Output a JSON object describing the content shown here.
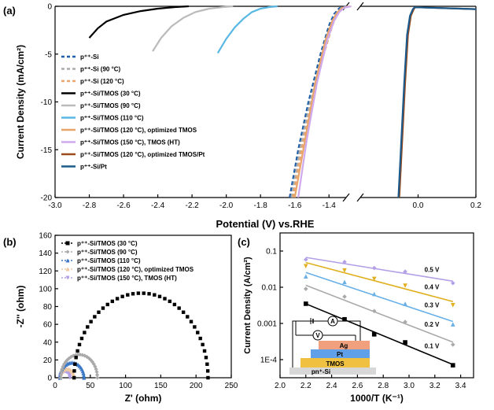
{
  "panels": {
    "a": "(a)",
    "b": "(b)",
    "c": "(c)"
  },
  "chart_data": [
    {
      "type": "line",
      "panel": "(a)",
      "xlabel": "Potential (V) vs.RHE",
      "ylabel": "Current Density (mA/cm²)",
      "ylim": [
        -20,
        0
      ],
      "x_ticks_left": [
        "-3.0",
        "-2.8",
        "-2.6",
        "-2.4",
        "-2.2",
        "-2.0",
        "-1.8",
        "-1.6",
        "-1.4"
      ],
      "x_ticks_right": [
        "0.0",
        "0.2"
      ],
      "y_ticks": [
        "0",
        "-5",
        "-10",
        "-15",
        "-20"
      ],
      "axis_break": true,
      "series": [
        {
          "name": "p⁺⁺-Si",
          "color": "#1f5fa8",
          "dash": "dashed",
          "x": [
            -1.63,
            -1.58,
            -1.52,
            -1.45,
            -1.4,
            -1.37,
            -1.34,
            -1.3
          ],
          "y": [
            -20,
            -15,
            -10,
            -5,
            -2,
            -0.8,
            -0.2,
            0
          ]
        },
        {
          "name": "p⁺⁺-Si (90 °C)",
          "color": "#aaaaaa",
          "dash": "dashed",
          "x": [
            -1.62,
            -1.57,
            -1.51,
            -1.44,
            -1.39,
            -1.36,
            -1.33,
            -1.29
          ],
          "y": [
            -20,
            -15,
            -10,
            -5,
            -2,
            -0.8,
            -0.2,
            0
          ]
        },
        {
          "name": "p⁺⁺-Si (120 °C)",
          "color": "#e9a56b",
          "dash": "dashed",
          "x": [
            -1.61,
            -1.56,
            -1.5,
            -1.43,
            -1.38,
            -1.35,
            -1.32,
            -1.28
          ],
          "y": [
            -20,
            -15,
            -10,
            -5,
            -2,
            -0.8,
            -0.2,
            0
          ]
        },
        {
          "name": "p⁺⁺-Si/TMOS (30 °C)",
          "color": "#000000",
          "dash": "solid",
          "x": [
            -2.8,
            -2.75,
            -2.7,
            -2.6,
            -2.5,
            -2.4,
            -2.3,
            -2.22
          ],
          "y": [
            -3.3,
            -2.3,
            -1.6,
            -0.9,
            -0.5,
            -0.25,
            -0.08,
            0
          ]
        },
        {
          "name": "p⁺⁺-Si/TMOS (90 °C)",
          "color": "#bbbbbb",
          "dash": "solid",
          "x": [
            -2.43,
            -2.38,
            -2.32,
            -2.25,
            -2.18,
            -2.1,
            -2.02,
            -1.96
          ],
          "y": [
            -4.7,
            -3.3,
            -2.1,
            -1.2,
            -0.6,
            -0.25,
            -0.08,
            0
          ]
        },
        {
          "name": "p⁺⁺-Si/TMOS (110 °C)",
          "color": "#58b7e3",
          "dash": "solid",
          "x": [
            -2.05,
            -2.0,
            -1.95,
            -1.9,
            -1.85,
            -1.8,
            -1.75,
            -1.7
          ],
          "y": [
            -4.9,
            -3.4,
            -2.2,
            -1.3,
            -0.6,
            -0.25,
            -0.08,
            0
          ]
        },
        {
          "name": "p⁺⁺-Si/TMOS (120 °C), optimized TMOS",
          "color": "#e8a46a",
          "dash": "solid",
          "x": [
            -1.6,
            -1.54,
            -1.48,
            -1.42,
            -1.38,
            -1.35,
            -1.32,
            -1.28
          ],
          "y": [
            -20,
            -14,
            -8,
            -3.5,
            -1.5,
            -0.6,
            -0.15,
            0
          ]
        },
        {
          "name": "p⁺⁺-Si/TMOS (150 °C), TMOS (HT)",
          "color": "#cfa9ee",
          "dash": "solid",
          "x": [
            -1.58,
            -1.53,
            -1.47,
            -1.41,
            -1.37,
            -1.34,
            -1.31,
            -1.27
          ],
          "y": [
            -20,
            -14,
            -8,
            -3.5,
            -1.5,
            -0.6,
            -0.15,
            0
          ]
        },
        {
          "name": "p⁺⁺-Si/TMOS (120 °C), optimized TMOS/Pt",
          "color": "#9a4a1b",
          "dash": "solid",
          "x": [
            -0.065,
            -0.055,
            -0.045,
            -0.035,
            -0.025,
            -0.015,
            -0.01,
            0.2
          ],
          "y": [
            -20,
            -14,
            -8,
            -3,
            -1,
            -0.3,
            -0.1,
            -0.3
          ]
        },
        {
          "name": "p⁺⁺-Si/Pt",
          "color": "#1c5a8c",
          "dash": "solid",
          "x": [
            -0.068,
            -0.058,
            -0.048,
            -0.038,
            -0.028,
            -0.018,
            -0.012,
            0.2
          ],
          "y": [
            -20,
            -14,
            -8,
            -3,
            -1,
            -0.3,
            -0.1,
            -0.3
          ]
        }
      ]
    },
    {
      "type": "scatter",
      "panel": "(b)",
      "xlabel": "Z' (ohm)",
      "ylabel": "-Z'' (ohm)",
      "xlim": [
        0,
        250
      ],
      "ylim": [
        0,
        160
      ],
      "x_ticks": [
        "0",
        "50",
        "100",
        "150",
        "200",
        "250"
      ],
      "y_ticks": [
        "0",
        "20",
        "40",
        "60",
        "80",
        "100",
        "120",
        "140",
        "160"
      ],
      "series": [
        {
          "name": "p⁺⁺-Si/TMOS (30 °C)",
          "color": "#000000",
          "marker": "square",
          "center": 122,
          "radius": 95,
          "count": 40
        },
        {
          "name": "p⁺⁺-Si/TMOS (90 °C)",
          "color": "#aaaaaa",
          "marker": "diamond",
          "center": 34,
          "radius": 26,
          "count": 26
        },
        {
          "name": "p⁺⁺-Si/TMOS (110 °C)",
          "color": "#3c78c8",
          "marker": "triangle",
          "center": 24,
          "radius": 17,
          "count": 22
        },
        {
          "name": "p⁺⁺-Si/TMOS (120 °C), optimized TMOS",
          "color": "#f0c8a0",
          "marker": "triangle",
          "center": 17,
          "radius": 10,
          "count": 16
        },
        {
          "name": "p⁺⁺-Si/TMOS (150 °C), TMOS (HT)",
          "color": "#b4a0e6",
          "marker": "triangle-down",
          "center": 14,
          "radius": 7,
          "count": 14
        }
      ]
    },
    {
      "type": "scatter",
      "panel": "(c)",
      "xlabel": "1000/T (K⁻¹)",
      "ylabel": "Current Density (A/cm²)",
      "xlim": [
        2.0,
        3.5
      ],
      "ylim_log": [
        -4.5,
        -0.5
      ],
      "y_scale": "log",
      "x_ticks": [
        "2.0",
        "2.2",
        "2.4",
        "2.6",
        "2.8",
        "3.0",
        "3.2",
        "3.4"
      ],
      "y_ticks": [
        "1E-4",
        "0.001",
        "0.01",
        "0.1"
      ],
      "series": [
        {
          "name": "0.5 V",
          "color": "#b4a0e6",
          "marker": "diamond",
          "x": [
            2.2,
            2.5,
            2.73,
            2.97,
            3.34
          ],
          "y": [
            0.058,
            0.05,
            0.034,
            0.027,
            0.013
          ]
        },
        {
          "name": "0.4 V",
          "color": "#e0b020",
          "marker": "triangle-down",
          "x": [
            2.2,
            2.5,
            2.73,
            2.97,
            3.34
          ],
          "y": [
            0.038,
            0.029,
            0.017,
            0.011,
            0.0032
          ]
        },
        {
          "name": "0.3 V",
          "color": "#6ab0e6",
          "marker": "triangle",
          "x": [
            2.2,
            2.5,
            2.73,
            2.97,
            3.34
          ],
          "y": [
            0.02,
            0.014,
            0.0065,
            0.0035,
            0.00095
          ]
        },
        {
          "name": "0.2 V",
          "color": "#aaaaaa",
          "marker": "diamond",
          "x": [
            2.2,
            2.5,
            2.73,
            2.97,
            3.34
          ],
          "y": [
            0.009,
            0.0055,
            0.0022,
            0.0011,
            0.00026
          ]
        },
        {
          "name": "0.1 V",
          "color": "#000000",
          "marker": "square",
          "x": [
            2.2,
            2.5,
            2.73,
            2.97,
            3.34
          ],
          "y": [
            0.0035,
            0.0013,
            0.0005,
            0.0003,
            7e-05
          ]
        }
      ],
      "inset_labels": [
        "A",
        "V",
        "Ag",
        "Pt",
        "TMOS",
        "pn⁺-Si"
      ]
    }
  ]
}
